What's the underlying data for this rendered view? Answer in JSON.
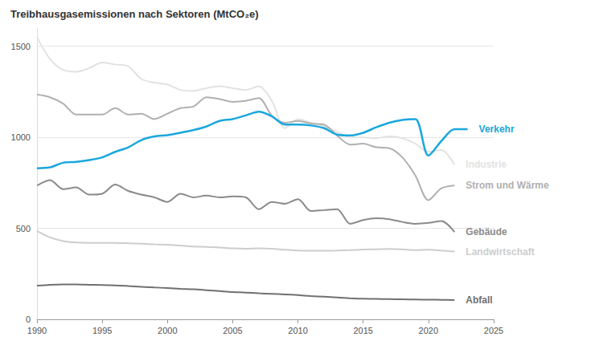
{
  "chart_data": {
    "type": "line",
    "title": "Treibhausgasemissionen nach Sektoren (MtCO₂e)",
    "x": [
      1990,
      1991,
      1992,
      1993,
      1994,
      1995,
      1996,
      1997,
      1998,
      1999,
      2000,
      2001,
      2002,
      2003,
      2004,
      2005,
      2006,
      2007,
      2008,
      2009,
      2010,
      2011,
      2012,
      2013,
      2014,
      2015,
      2016,
      2017,
      2018,
      2019,
      2020,
      2021,
      2022,
      2023
    ],
    "xlim": [
      1990,
      2025
    ],
    "xticks": [
      1990,
      1995,
      2000,
      2005,
      2010,
      2015,
      2020,
      2025
    ],
    "ylim": [
      0,
      1600
    ],
    "yticks": [
      0,
      500,
      1000,
      1500
    ],
    "grid": true,
    "series": [
      {
        "name": "Verkehr",
        "color": "#1aa7dc",
        "values": [
          830,
          835,
          860,
          865,
          875,
          890,
          920,
          945,
          985,
          1005,
          1012,
          1025,
          1040,
          1060,
          1090,
          1100,
          1120,
          1140,
          1115,
          1070,
          1070,
          1065,
          1050,
          1015,
          1010,
          1025,
          1055,
          1080,
          1095,
          1100,
          900,
          980,
          1045,
          1045
        ]
      },
      {
        "name": "Industrie",
        "color": "#e2e2e2",
        "values": [
          1550,
          1430,
          1370,
          1360,
          1380,
          1410,
          1400,
          1390,
          1320,
          1300,
          1290,
          1260,
          1255,
          1270,
          1280,
          1270,
          1260,
          1280,
          1200,
          1050,
          1100,
          1080,
          1060,
          1030,
          1000,
          1000,
          995,
          1005,
          995,
          965,
          920,
          930,
          850,
          null
        ]
      },
      {
        "name": "Strom und Wärme",
        "color": "#b0b0b0",
        "values": [
          1235,
          1220,
          1185,
          1125,
          1125,
          1125,
          1160,
          1125,
          1130,
          1100,
          1130,
          1160,
          1170,
          1220,
          1210,
          1195,
          1200,
          1215,
          1120,
          1080,
          1090,
          1075,
          1070,
          1010,
          960,
          965,
          945,
          940,
          890,
          790,
          655,
          720,
          735,
          null
        ]
      },
      {
        "name": "Gebäude",
        "color": "#8a8a8a",
        "values": [
          735,
          765,
          715,
          725,
          685,
          690,
          740,
          705,
          685,
          670,
          645,
          690,
          670,
          680,
          670,
          675,
          670,
          605,
          645,
          635,
          660,
          595,
          600,
          605,
          525,
          545,
          555,
          550,
          535,
          525,
          530,
          540,
          480,
          null
        ]
      },
      {
        "name": "Landwirtschaft",
        "color": "#cdcdcd",
        "values": [
          485,
          450,
          430,
          422,
          420,
          420,
          420,
          418,
          415,
          412,
          410,
          405,
          400,
          398,
          395,
          390,
          388,
          390,
          388,
          382,
          378,
          377,
          377,
          378,
          380,
          383,
          385,
          387,
          385,
          380,
          382,
          378,
          372,
          null
        ]
      },
      {
        "name": "Abfall",
        "color": "#707070",
        "values": [
          185,
          190,
          192,
          192,
          190,
          188,
          186,
          183,
          178,
          175,
          172,
          168,
          165,
          160,
          155,
          150,
          147,
          143,
          140,
          137,
          133,
          128,
          124,
          120,
          116,
          113,
          112,
          111,
          110,
          109,
          108,
          107,
          106,
          null
        ]
      }
    ]
  }
}
